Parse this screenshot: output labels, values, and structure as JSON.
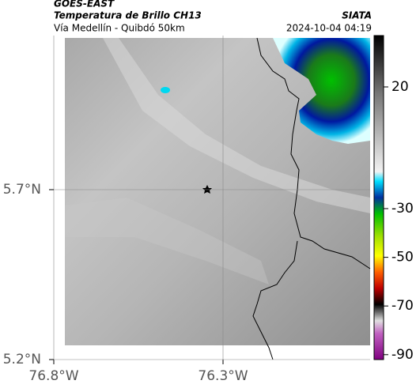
{
  "header": {
    "satellite": "GOES-EAST",
    "title": "Temperatura de Brillo CH13",
    "subtitle": "Vía Medellín - Quibdó 50km",
    "source": "SIATA",
    "timestamp": "2024-10-04 04:19"
  },
  "map": {
    "xticks": [
      {
        "value": -76.8,
        "label": "76.8°W"
      },
      {
        "value": -76.3,
        "label": "76.3°W"
      }
    ],
    "yticks": [
      {
        "value": 5.7,
        "label": "5.7°N"
      },
      {
        "value": 5.2,
        "label": "5.2°N"
      }
    ],
    "grid": true
  },
  "colorbar": {
    "ticks": [
      20,
      -30,
      -50,
      -70,
      -90
    ]
  }
}
